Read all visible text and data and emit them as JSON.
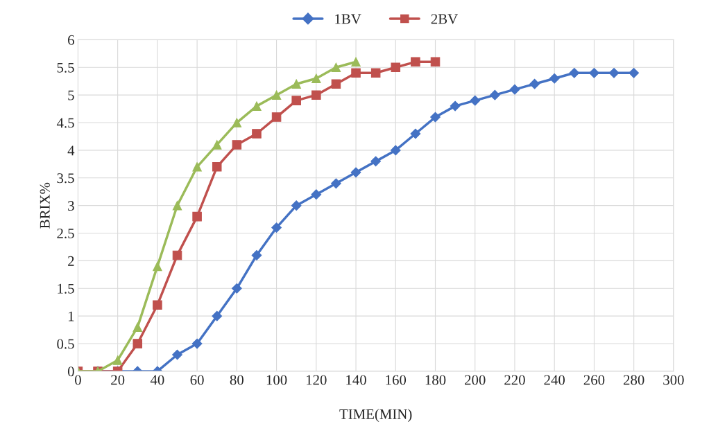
{
  "chart_data": {
    "type": "line",
    "xlabel": "TIME(MIN)",
    "ylabel": "BRIX%",
    "xlim": [
      0,
      300
    ],
    "xticks": [
      0,
      20,
      40,
      60,
      80,
      100,
      120,
      140,
      160,
      180,
      200,
      220,
      240,
      260,
      280,
      300
    ],
    "ylim": [
      0,
      6
    ],
    "yticks": [
      0,
      0.5,
      1,
      1.5,
      2,
      2.5,
      3,
      3.5,
      4,
      4.5,
      5,
      5.5,
      6
    ],
    "grid": true,
    "legend": "top",
    "series": [
      {
        "name": "1BV",
        "color": "#4472c4",
        "marker": "diamond",
        "x": [
          0,
          10,
          20,
          30,
          40,
          50,
          60,
          70,
          80,
          90,
          100,
          110,
          120,
          130,
          140,
          150,
          160,
          170,
          180,
          190,
          200,
          210,
          220,
          230,
          240,
          250,
          260,
          270,
          280
        ],
        "values": [
          0,
          0,
          0,
          0,
          0,
          0.3,
          0.5,
          1,
          1.5,
          2.1,
          2.6,
          3,
          3.2,
          3.4,
          3.6,
          3.8,
          4,
          4.3,
          4.6,
          4.8,
          4.9,
          5,
          5.1,
          5.2,
          5.3,
          5.4,
          5.4,
          5.4,
          5.4
        ]
      },
      {
        "name": "2BV",
        "color": "#c0504d",
        "marker": "square",
        "x": [
          0,
          10,
          20,
          30,
          40,
          50,
          60,
          70,
          80,
          90,
          100,
          110,
          120,
          130,
          140,
          150,
          160,
          170,
          180
        ],
        "values": [
          0,
          0,
          0,
          0.5,
          1.2,
          2.1,
          2.8,
          3.7,
          4.1,
          4.3,
          4.6,
          4.9,
          5,
          5.2,
          5.4,
          5.4,
          5.5,
          5.6,
          5.6
        ]
      },
      {
        "color": "#9bbb59",
        "marker": "triangle",
        "x": [
          0,
          10,
          20,
          30,
          40,
          50,
          60,
          70,
          80,
          90,
          100,
          110,
          120,
          130,
          140
        ],
        "values": [
          0,
          0,
          0.2,
          0.8,
          1.9,
          3,
          3.7,
          4.1,
          4.5,
          4.8,
          5,
          5.2,
          5.3,
          5.5,
          5.6
        ]
      }
    ]
  }
}
